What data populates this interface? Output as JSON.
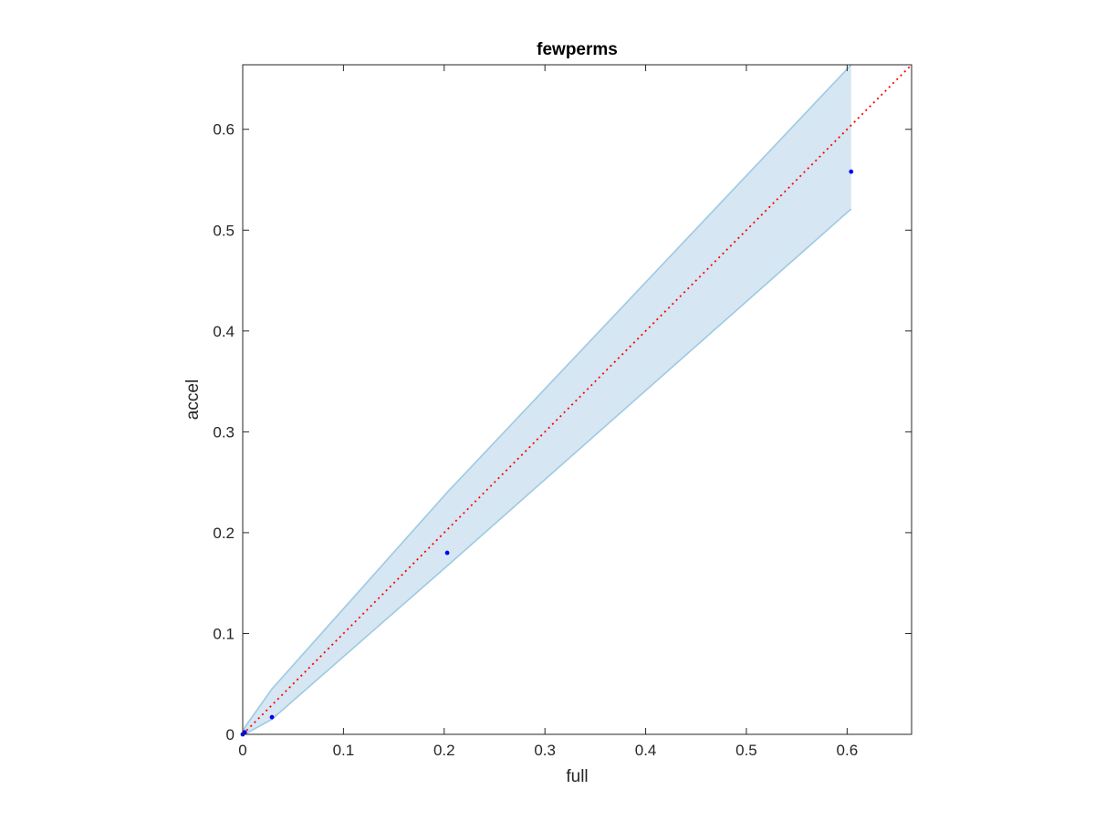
{
  "chart_data": {
    "type": "scatter",
    "title": "fewperms",
    "xlabel": "full",
    "ylabel": "accel",
    "xlim": [
      0,
      0.664
    ],
    "ylim": [
      0,
      0.664
    ],
    "xticks": [
      "0",
      "0.1",
      "0.2",
      "0.3",
      "0.4",
      "0.5",
      "0.6"
    ],
    "yticks": [
      "0",
      "0.1",
      "0.2",
      "0.3",
      "0.4",
      "0.5",
      "0.6"
    ],
    "grid": false,
    "legend": "none",
    "series": [
      {
        "type": "scatter",
        "color": "#0000ff",
        "points": [
          {
            "x": 0.0,
            "y": 0.0
          },
          {
            "x": 0.002,
            "y": 0.002
          },
          {
            "x": 0.029,
            "y": 0.017
          },
          {
            "x": 0.203,
            "y": 0.18
          },
          {
            "x": 0.604,
            "y": 0.558
          }
        ]
      }
    ],
    "band": {
      "color": "#9ecae1",
      "fill": "#d6e6f2",
      "x": [
        0.0,
        0.002,
        0.029,
        0.203,
        0.604
      ],
      "upper": [
        0.0,
        0.007,
        0.045,
        0.24,
        0.664
      ],
      "lower": [
        0.0,
        0.0,
        0.015,
        0.167,
        0.521
      ]
    },
    "reference_line": {
      "type": "identity",
      "style": "dotted",
      "color": "#ff0000",
      "from": [
        0,
        0
      ],
      "to": [
        0.664,
        0.664
      ]
    }
  }
}
